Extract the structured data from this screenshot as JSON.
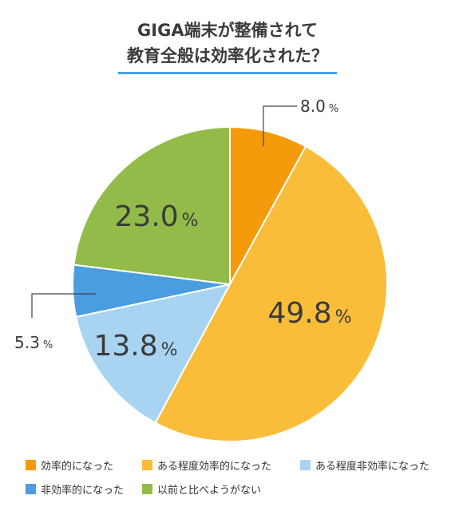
{
  "title_line1": "GIGA端末が整備されて",
  "title_line2": "教育全般は効率化された？",
  "colors": {
    "accent_underline": "#4aa3df"
  },
  "chart_data": {
    "type": "pie",
    "title": "GIGA端末が整備されて教育全般は効率化された？",
    "start_angle_deg": 0,
    "direction": "clockwise",
    "slices": [
      {
        "label": "効率的になった",
        "value": 8.0,
        "value_label": "8.0",
        "color": "#f59a0a"
      },
      {
        "label": "ある程度効率的になった",
        "value": 49.8,
        "value_label": "49.8",
        "color": "#f9bd3a"
      },
      {
        "label": "ある程度非効率になった",
        "value": 13.8,
        "value_label": "13.8",
        "color": "#a8d4f2"
      },
      {
        "label": "非効率的になった",
        "value": 5.3,
        "value_label": "5.3",
        "color": "#4a9de0"
      },
      {
        "label": "以前と比べようがない",
        "value": 23.0,
        "value_label": "23.0",
        "color": "#92bb4a"
      }
    ],
    "unit": "%",
    "legend_position": "bottom"
  }
}
